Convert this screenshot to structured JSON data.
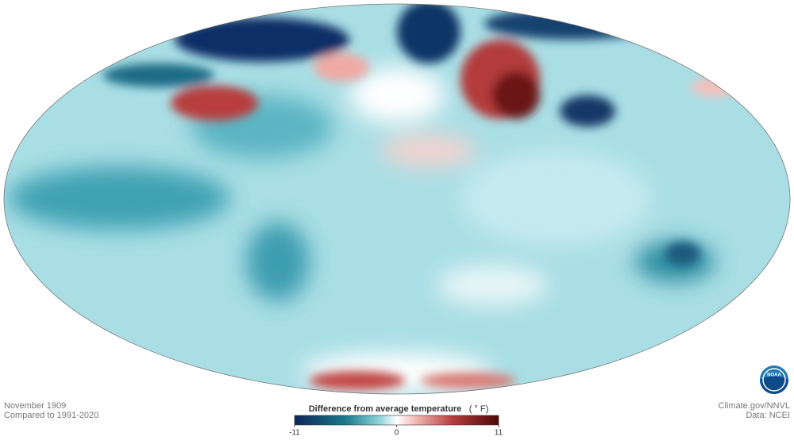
{
  "map": {
    "date": "November 1909",
    "baseline": "Compared to 1991-2020",
    "credit": "Climate.gov/NNVL",
    "source": "Data: NCEI",
    "logo": "NOAA"
  },
  "colorbar": {
    "label": "Difference from average temperature",
    "unit": "( ° F)",
    "range": [
      -11,
      11
    ],
    "ticks": [
      -11,
      0,
      11
    ]
  }
}
